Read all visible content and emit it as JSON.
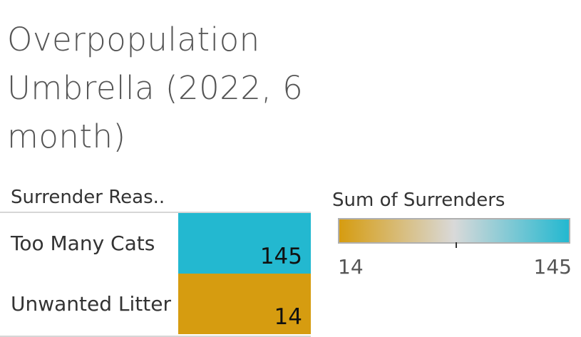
{
  "chart_data": {
    "type": "table",
    "title": "Overpopulation Umbrella (2022, 6 month)",
    "row_header": "Surrender Reas..",
    "rows": [
      {
        "label": "Too Many Cats",
        "value": 145
      },
      {
        "label": "Unwanted Litter",
        "value": 14
      }
    ],
    "color_legend": {
      "title": "Sum of Surrenders",
      "min": 14,
      "max": 145,
      "min_label": "14",
      "max_label": "145",
      "colors": [
        "#d69c10",
        "#d9d9d9",
        "#23b8d0"
      ]
    }
  }
}
